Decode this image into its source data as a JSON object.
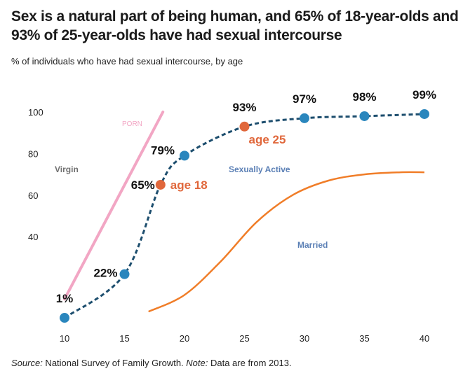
{
  "header": {
    "title": "Sex is a natural part of being human, and 65% of 18-year-olds and 93% of 25-year-olds have had sexual intercourse",
    "subtitle": "% of individuals who have had sexual intercourse, by age"
  },
  "footer": {
    "source_label": "Source:",
    "source_text": " National Survey of Family Growth. ",
    "note_label": "Note:",
    "note_text": " Data are from 2013."
  },
  "colors": {
    "main_line": "#1d4e6e",
    "main_point": "#2a86bd",
    "highlight_point": "#e0673b",
    "porn_line": "#f2a6c4",
    "married_line": "#f07d28",
    "virgin_text": "#707070",
    "active_text": "#5a7fb5",
    "married_text": "#5a7fb5",
    "porn_text": "#f2a6c4"
  },
  "chart_data": {
    "type": "line",
    "title": "Sex is a natural part of being human, and 65% of 18-year-olds and 93% of 25-year-olds have had sexual intercourse",
    "subtitle": "% of individuals who have had sexual intercourse, by age",
    "xlabel": "",
    "ylabel": "",
    "xlim": [
      10,
      40
    ],
    "ylim": [
      0,
      100
    ],
    "x_ticks": [
      10,
      15,
      20,
      25,
      30,
      35,
      40
    ],
    "y_ticks": [
      40,
      60,
      80,
      100
    ],
    "grid": false,
    "series": [
      {
        "name": "Sexually Active",
        "style": "dashed",
        "points": [
          {
            "x": 10,
            "y": 1,
            "label": "1%"
          },
          {
            "x": 15,
            "y": 22,
            "label": "22%"
          },
          {
            "x": 18,
            "y": 65,
            "label": "65%",
            "highlight": true,
            "annotation": "age 18"
          },
          {
            "x": 20,
            "y": 79,
            "label": "79%"
          },
          {
            "x": 25,
            "y": 93,
            "label": "93%",
            "highlight": true,
            "annotation": "age 25"
          },
          {
            "x": 30,
            "y": 97,
            "label": "97%"
          },
          {
            "x": 35,
            "y": 98,
            "label": "98%"
          },
          {
            "x": 40,
            "y": 99,
            "label": "99%"
          }
        ]
      },
      {
        "name": "Married",
        "style": "solid",
        "points": [
          {
            "x": 17,
            "y": 4
          },
          {
            "x": 20,
            "y": 12
          },
          {
            "x": 23,
            "y": 28
          },
          {
            "x": 26,
            "y": 47
          },
          {
            "x": 29,
            "y": 60
          },
          {
            "x": 32,
            "y": 67
          },
          {
            "x": 35,
            "y": 70
          },
          {
            "x": 38,
            "y": 71
          },
          {
            "x": 40,
            "y": 71
          }
        ]
      },
      {
        "name": "PORN",
        "style": "solid",
        "points": [
          {
            "x": 10,
            "y": 10
          },
          {
            "x": 18.2,
            "y": 100
          }
        ]
      }
    ],
    "region_labels": [
      "Virgin",
      "Sexually Active",
      "Married",
      "PORN"
    ]
  }
}
